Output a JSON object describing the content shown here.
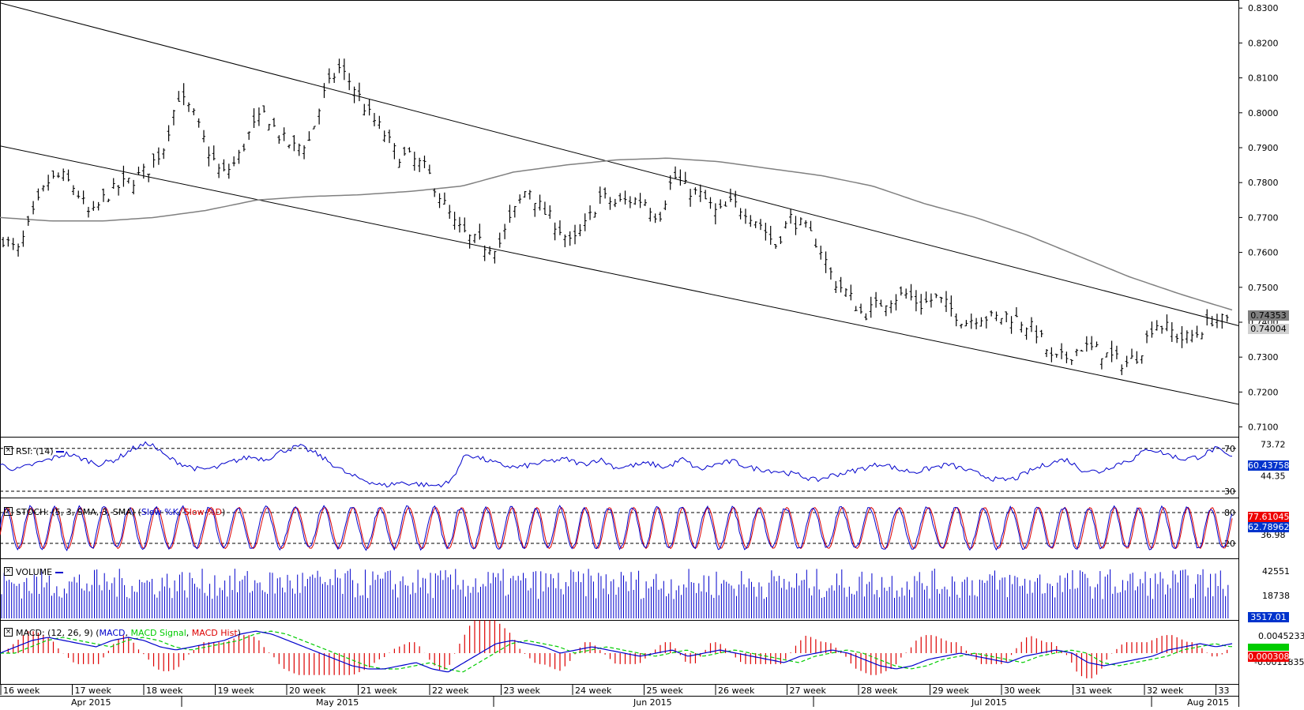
{
  "chart_data": {
    "type": "candlestick",
    "instrument_hint": "weekly-labelled daily OHLC price chart",
    "price_axis": {
      "ticks": [
        "0.8300",
        "0.8200",
        "0.8100",
        "0.8000",
        "0.7900",
        "0.7800",
        "0.7700",
        "0.7600",
        "0.7500",
        "0.7400",
        "0.7300",
        "0.7200",
        "0.7100"
      ],
      "ylim": [
        0.709,
        0.8305
      ]
    },
    "price_badges": {
      "upper": "0.74353",
      "lower": "0.74004"
    },
    "week_labels": [
      "16 week",
      "17 week",
      "18 week",
      "19 week",
      "20 week",
      "21 week",
      "22 week",
      "23 week",
      "24 week",
      "25 week",
      "26 week",
      "27 week",
      "28 week",
      "29 week",
      "30 week",
      "31 week",
      "32 week",
      "33"
    ],
    "month_labels": [
      "Apr 2015",
      "May 2015",
      "Jun 2015",
      "Jul 2015",
      "Aug 2015"
    ],
    "price_path": [
      0.764,
      0.76,
      0.77,
      0.78,
      0.782,
      0.778,
      0.77,
      0.776,
      0.779,
      0.781,
      0.784,
      0.79,
      0.805,
      0.8,
      0.79,
      0.782,
      0.786,
      0.795,
      0.8,
      0.793,
      0.79,
      0.792,
      0.805,
      0.813,
      0.808,
      0.8,
      0.795,
      0.788,
      0.787,
      0.784,
      0.776,
      0.768,
      0.764,
      0.762,
      0.762,
      0.771,
      0.779,
      0.772,
      0.768,
      0.762,
      0.768,
      0.776,
      0.774,
      0.775,
      0.775,
      0.77,
      0.782,
      0.778,
      0.776,
      0.771,
      0.774,
      0.772,
      0.768,
      0.762,
      0.77,
      0.767,
      0.762,
      0.752,
      0.748,
      0.742,
      0.745,
      0.747,
      0.748,
      0.745,
      0.747,
      0.744,
      0.74,
      0.742,
      0.741,
      0.742,
      0.74,
      0.737,
      0.729,
      0.73,
      0.733,
      0.732,
      0.73,
      0.728,
      0.731,
      0.74,
      0.738,
      0.735,
      0.737,
      0.741,
      0.74
    ],
    "sma_path": [
      0.77,
      0.769,
      0.769,
      0.77,
      0.772,
      0.775,
      0.776,
      0.7765,
      0.7775,
      0.779,
      0.783,
      0.785,
      0.7865,
      0.787,
      0.786,
      0.784,
      0.782,
      0.779,
      0.774,
      0.77,
      0.765,
      0.759,
      0.753,
      0.748,
      0.7435
    ],
    "trend_lines": [
      {
        "name": "upper-channel",
        "from": [
          0,
          0.8315
        ],
        "to": [
          1,
          0.739
        ]
      },
      {
        "name": "lower-channel",
        "from": [
          0,
          0.7905
        ],
        "to": [
          1,
          0.7165
        ]
      }
    ],
    "indicators": [
      {
        "name": "RSI",
        "label": "RSI: (14)",
        "levels": [
          "70",
          "30"
        ],
        "axis_ticks": [
          "73.72",
          "44.35"
        ],
        "value": "60.43758",
        "lo": 30,
        "hi": 75,
        "path": [
          55,
          50,
          55,
          60,
          65,
          60,
          55,
          60,
          70,
          75,
          62,
          55,
          50,
          52,
          58,
          62,
          60,
          68,
          72,
          65,
          55,
          45,
          40,
          35,
          38,
          37,
          35,
          38,
          65,
          60,
          55,
          52,
          55,
          58,
          60,
          55,
          60,
          52,
          54,
          56,
          52,
          60,
          50,
          55,
          58,
          52,
          50,
          48,
          45,
          40,
          45,
          48,
          52,
          56,
          50,
          48,
          52,
          55,
          50,
          45,
          40,
          42,
          50,
          56,
          60,
          50,
          48,
          55,
          60,
          70,
          65,
          60,
          62,
          70,
          61
        ]
      },
      {
        "name": "STOCH",
        "label": "STOCH: (5, 3, SMA, 3, SMA)",
        "k_label": "Slow %K",
        "d_label": "Slow %D",
        "levels": [
          "80",
          "20"
        ],
        "axis_ticks": [
          "36.98"
        ],
        "value_k": "77.61045",
        "value_d": "62.78962",
        "lo": 0,
        "hi": 100
      },
      {
        "name": "VOLUME",
        "label": "VOLUME",
        "axis_ticks": [
          "42551",
          "18738"
        ],
        "value": "3517.01"
      },
      {
        "name": "MACD",
        "label": "MACD: (12, 26, 9)",
        "series_labels": [
          "MACD",
          "MACD Signal",
          "MACD Hist"
        ],
        "axis_ticks": [
          "0.0045233",
          "-0.0011835"
        ],
        "value_top": "0.0003081",
        "path": [
          0,
          2,
          4,
          5,
          4,
          3,
          2,
          4,
          5,
          4,
          2,
          1,
          2,
          3,
          4,
          6,
          7,
          6,
          4,
          2,
          0,
          -2,
          -4,
          -5,
          -5,
          -4,
          -3,
          -5,
          -6,
          -3,
          0,
          3,
          4,
          3,
          2,
          0,
          1,
          2,
          1,
          0,
          -1,
          0,
          1,
          -1,
          0,
          1,
          0,
          -1,
          -2,
          -3,
          -1,
          0,
          1,
          0,
          -2,
          -4,
          -5,
          -4,
          -2,
          -1,
          0,
          -1,
          -2,
          -3,
          -1,
          0,
          1,
          0,
          -3,
          -4,
          -3,
          -2,
          -1,
          1,
          2,
          3,
          2,
          3
        ]
      }
    ],
    "colors": {
      "candle": "#000000",
      "sma": "#808080",
      "rsi": "#0000cc",
      "stoch_k": "#0000cc",
      "stoch_d": "#dd0000",
      "volume": "#0000cc",
      "macd": "#0000cc",
      "signal": "#00cc00",
      "hist": "#dd0000",
      "badge_blue": "#0033cc",
      "badge_red": "#ee0000",
      "badge_green": "#00cc00"
    }
  }
}
